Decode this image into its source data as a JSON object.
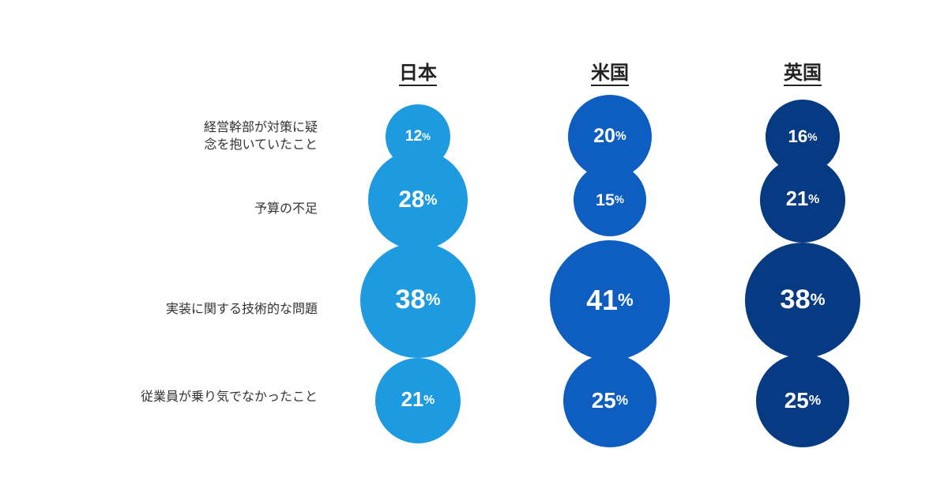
{
  "chart_data": {
    "type": "bubble",
    "title": "",
    "columns": [
      {
        "name": "日本",
        "color": "#1e9be0"
      },
      {
        "name": "米国",
        "color": "#0e5dc1"
      },
      {
        "name": "英国",
        "color": "#063a82"
      }
    ],
    "rows": [
      "経営幹部が対策に疑\n念を抱いていたこと",
      "予算の不足",
      "実装に関する技術的な問題",
      "従業員が乗り気でなかったこと"
    ],
    "values": [
      [
        12,
        20,
        16
      ],
      [
        28,
        15,
        21
      ],
      [
        38,
        41,
        38
      ],
      [
        21,
        25,
        25
      ]
    ],
    "unit": "%"
  }
}
